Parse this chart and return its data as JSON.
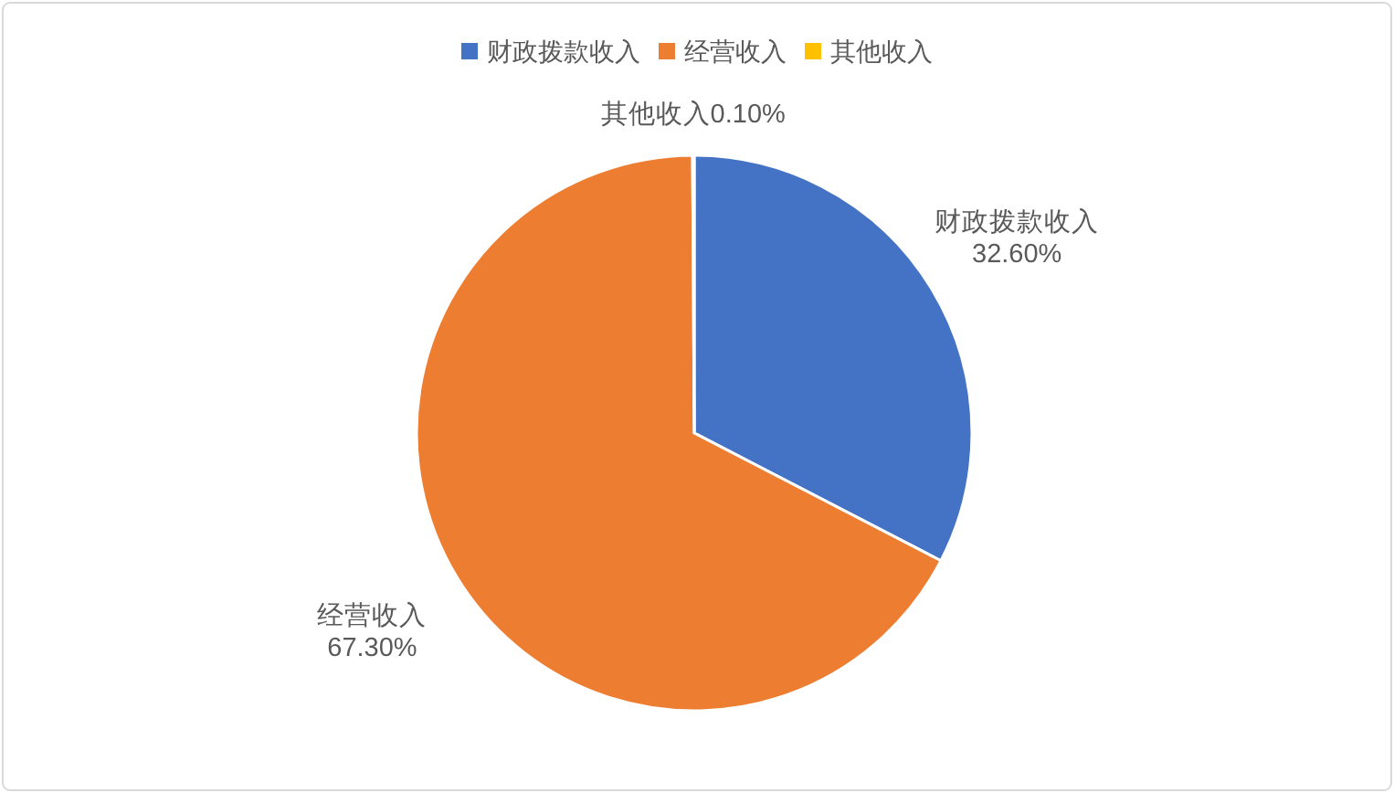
{
  "chart_data": {
    "type": "pie",
    "categories": [
      "财政拨款收入",
      "经营收入",
      "其他收入"
    ],
    "values": [
      32.6,
      67.3,
      0.1
    ],
    "value_labels": [
      "32.60%",
      "67.30%",
      "0.10%"
    ],
    "colors": [
      "#4472c4",
      "#ed7d31",
      "#ffc000"
    ],
    "legend": "top"
  }
}
